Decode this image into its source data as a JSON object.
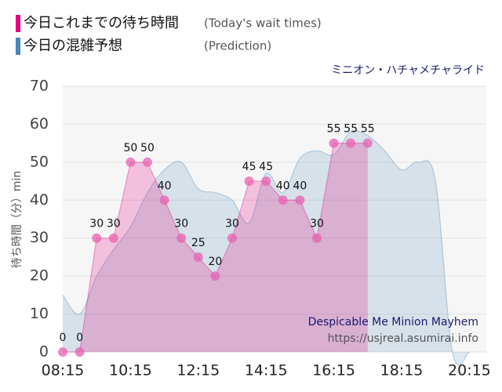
{
  "chart_data": {
    "type": "line",
    "attraction": "ミニオン・ハチャメチャライド",
    "attraction_en": "Despicable Me Minion Mayhem",
    "source": "https://usjreal.asumirai.info",
    "ylabel": "待ち時間（分）min",
    "categories": [
      "08:15",
      null,
      null,
      null,
      "10:15",
      null,
      null,
      null,
      "12:15",
      null,
      null,
      null,
      "14:15",
      null,
      null,
      null,
      "16:15",
      null,
      null,
      null,
      "18:15",
      null,
      null,
      null,
      "20:15"
    ],
    "series": [
      {
        "name": "今日の混雑予想",
        "caption": "(Prediction)",
        "color": "#4a86b8",
        "smooth": true,
        "values": [
          15,
          10,
          20,
          27,
          33,
          42,
          48,
          50,
          43,
          42,
          40,
          34,
          47,
          42,
          51,
          53,
          52,
          58,
          57,
          53,
          48,
          50,
          45,
          0,
          0
        ]
      },
      {
        "name": "今日これまでの待ち時間",
        "caption": "(Today's wait times)",
        "color": "#e4007f",
        "markers": true,
        "values": [
          0,
          0,
          30,
          30,
          50,
          50,
          40,
          30,
          25,
          20,
          30,
          45,
          45,
          40,
          40,
          30,
          55,
          55,
          55,
          null,
          null,
          null,
          null,
          null,
          null
        ]
      }
    ],
    "ylim": [
      0,
      70
    ],
    "yticks": [
      0,
      10,
      20,
      30,
      40,
      50,
      60,
      70
    ],
    "grid": true
  }
}
